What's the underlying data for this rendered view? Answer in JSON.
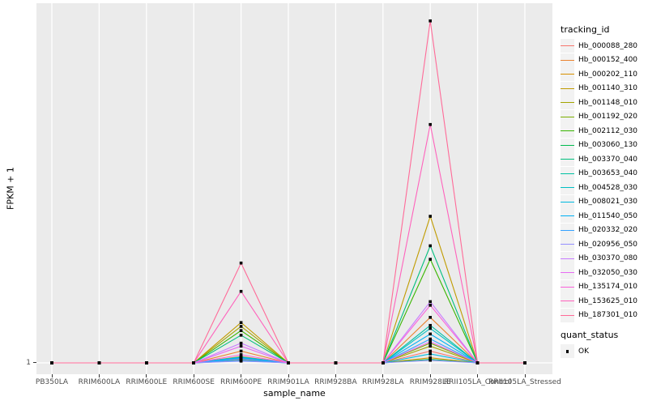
{
  "figure": {
    "background": "#FFFFFF",
    "panel_background": "#EBEBEB",
    "gridline_color": "#FFFFFF",
    "tick_color": "#333333",
    "axis_text_color": "#4D4D4D",
    "title_color": "#000000"
  },
  "axes": {
    "x_title": "sample_name",
    "y_title": "FPKM + 1",
    "y_tick_labels": [
      "1"
    ]
  },
  "legend": {
    "tracking_title": "tracking_id",
    "quant_title": "quant_status",
    "quant_items": [
      {
        "label": "OK",
        "marker": "black-square"
      }
    ]
  },
  "chart_data": {
    "type": "line",
    "title": "",
    "xlabel": "sample_name",
    "ylabel": "FPKM + 1",
    "y_scale": "log10",
    "ylim": [
      1,
      3000
    ],
    "y_breaks_labeled": [
      "1"
    ],
    "grid": "on",
    "legend_position": "right",
    "point_marker": "square",
    "point_color": "#000000",
    "x_categories": [
      "PB350LA",
      "RRIM600LA",
      "RRIM600LE",
      "RRIM600SE",
      "RRIM600PE",
      "RRIM901LA",
      "RRIM928BA",
      "RRIM928LA",
      "RRIM928LE",
      "RRII105LA_Control",
      "RRII105LA_Stressed"
    ],
    "series": [
      {
        "name": "Hb_000088_280",
        "color": "#F8766D",
        "values": [
          1,
          1,
          1,
          1,
          1.08,
          1,
          1,
          1,
          1.3,
          1,
          1
        ]
      },
      {
        "name": "Hb_000152_400",
        "color": "#EA8331",
        "values": [
          1,
          1,
          1,
          1,
          1.3,
          1,
          1,
          1,
          2.75,
          1,
          1
        ]
      },
      {
        "name": "Hb_000202_110",
        "color": "#D89000",
        "values": [
          1,
          1,
          1,
          1,
          1.15,
          1,
          1,
          1,
          1.12,
          1,
          1
        ]
      },
      {
        "name": "Hb_001140_310",
        "color": "#C09B00",
        "values": [
          1,
          1,
          1,
          1,
          2.45,
          1,
          1,
          1,
          26,
          1,
          1
        ]
      },
      {
        "name": "Hb_001148_010",
        "color": "#A3A500",
        "values": [
          1,
          1,
          1,
          1,
          2.25,
          1,
          1,
          1,
          1.45,
          1,
          1
        ]
      },
      {
        "name": "Hb_001192_020",
        "color": "#7CAE00",
        "values": [
          1,
          1,
          1,
          1,
          1.12,
          1,
          1,
          1,
          1.55,
          1,
          1
        ]
      },
      {
        "name": "Hb_002112_030",
        "color": "#39B600",
        "values": [
          1,
          1,
          1,
          1,
          2.05,
          1,
          1,
          1,
          10,
          1,
          1
        ]
      },
      {
        "name": "Hb_003060_130",
        "color": "#00BB4E",
        "values": [
          1,
          1,
          1,
          1,
          1.05,
          1,
          1,
          1,
          1.08,
          1,
          1
        ]
      },
      {
        "name": "Hb_003370_040",
        "color": "#00BF7D",
        "values": [
          1,
          1,
          1,
          1,
          1.85,
          1,
          1,
          1,
          13.5,
          1,
          1
        ]
      },
      {
        "name": "Hb_003653_040",
        "color": "#00C1A3",
        "values": [
          1,
          1,
          1,
          1,
          1.1,
          1,
          1,
          1,
          2.3,
          1,
          1
        ]
      },
      {
        "name": "Hb_004528_030",
        "color": "#00BFC4",
        "values": [
          1,
          1,
          1,
          1,
          1.14,
          1,
          1,
          1,
          2.15,
          1,
          1
        ]
      },
      {
        "name": "Hb_008021_030",
        "color": "#00BAE0",
        "values": [
          1,
          1,
          1,
          1,
          1.06,
          1,
          1,
          1,
          1.22,
          1,
          1
        ]
      },
      {
        "name": "Hb_011540_050",
        "color": "#00B0F6",
        "values": [
          1,
          1,
          1,
          1,
          1.12,
          1,
          1,
          1,
          1.9,
          1,
          1
        ]
      },
      {
        "name": "Hb_020332_020",
        "color": "#35A2FF",
        "values": [
          1,
          1,
          1,
          1,
          1.1,
          1,
          1,
          1,
          1.7,
          1,
          1
        ]
      },
      {
        "name": "Hb_020956_050",
        "color": "#9590FF",
        "values": [
          1,
          1,
          1,
          1,
          1.04,
          1,
          1,
          1,
          1.06,
          1,
          1
        ]
      },
      {
        "name": "Hb_030370_080",
        "color": "#C77CFF",
        "values": [
          1,
          1,
          1,
          1,
          1.55,
          1,
          1,
          1,
          3.9,
          1,
          1
        ]
      },
      {
        "name": "Hb_032050_030",
        "color": "#E76BF3",
        "values": [
          1,
          1,
          1,
          1,
          1.45,
          1,
          1,
          1,
          1.6,
          1,
          1
        ]
      },
      {
        "name": "Hb_135174_010",
        "color": "#FA62DB",
        "values": [
          1,
          1,
          1,
          1,
          1.2,
          1,
          1,
          1,
          3.6,
          1,
          1
        ]
      },
      {
        "name": "Hb_153625_010",
        "color": "#FF62BC",
        "values": [
          1,
          1,
          1,
          1,
          4.9,
          1,
          1,
          1,
          200,
          1,
          1
        ]
      },
      {
        "name": "Hb_187301_010",
        "color": "#FF6A98",
        "values": [
          1,
          1,
          1,
          1,
          9.2,
          1,
          1,
          1,
          2000,
          1,
          1
        ]
      }
    ]
  }
}
